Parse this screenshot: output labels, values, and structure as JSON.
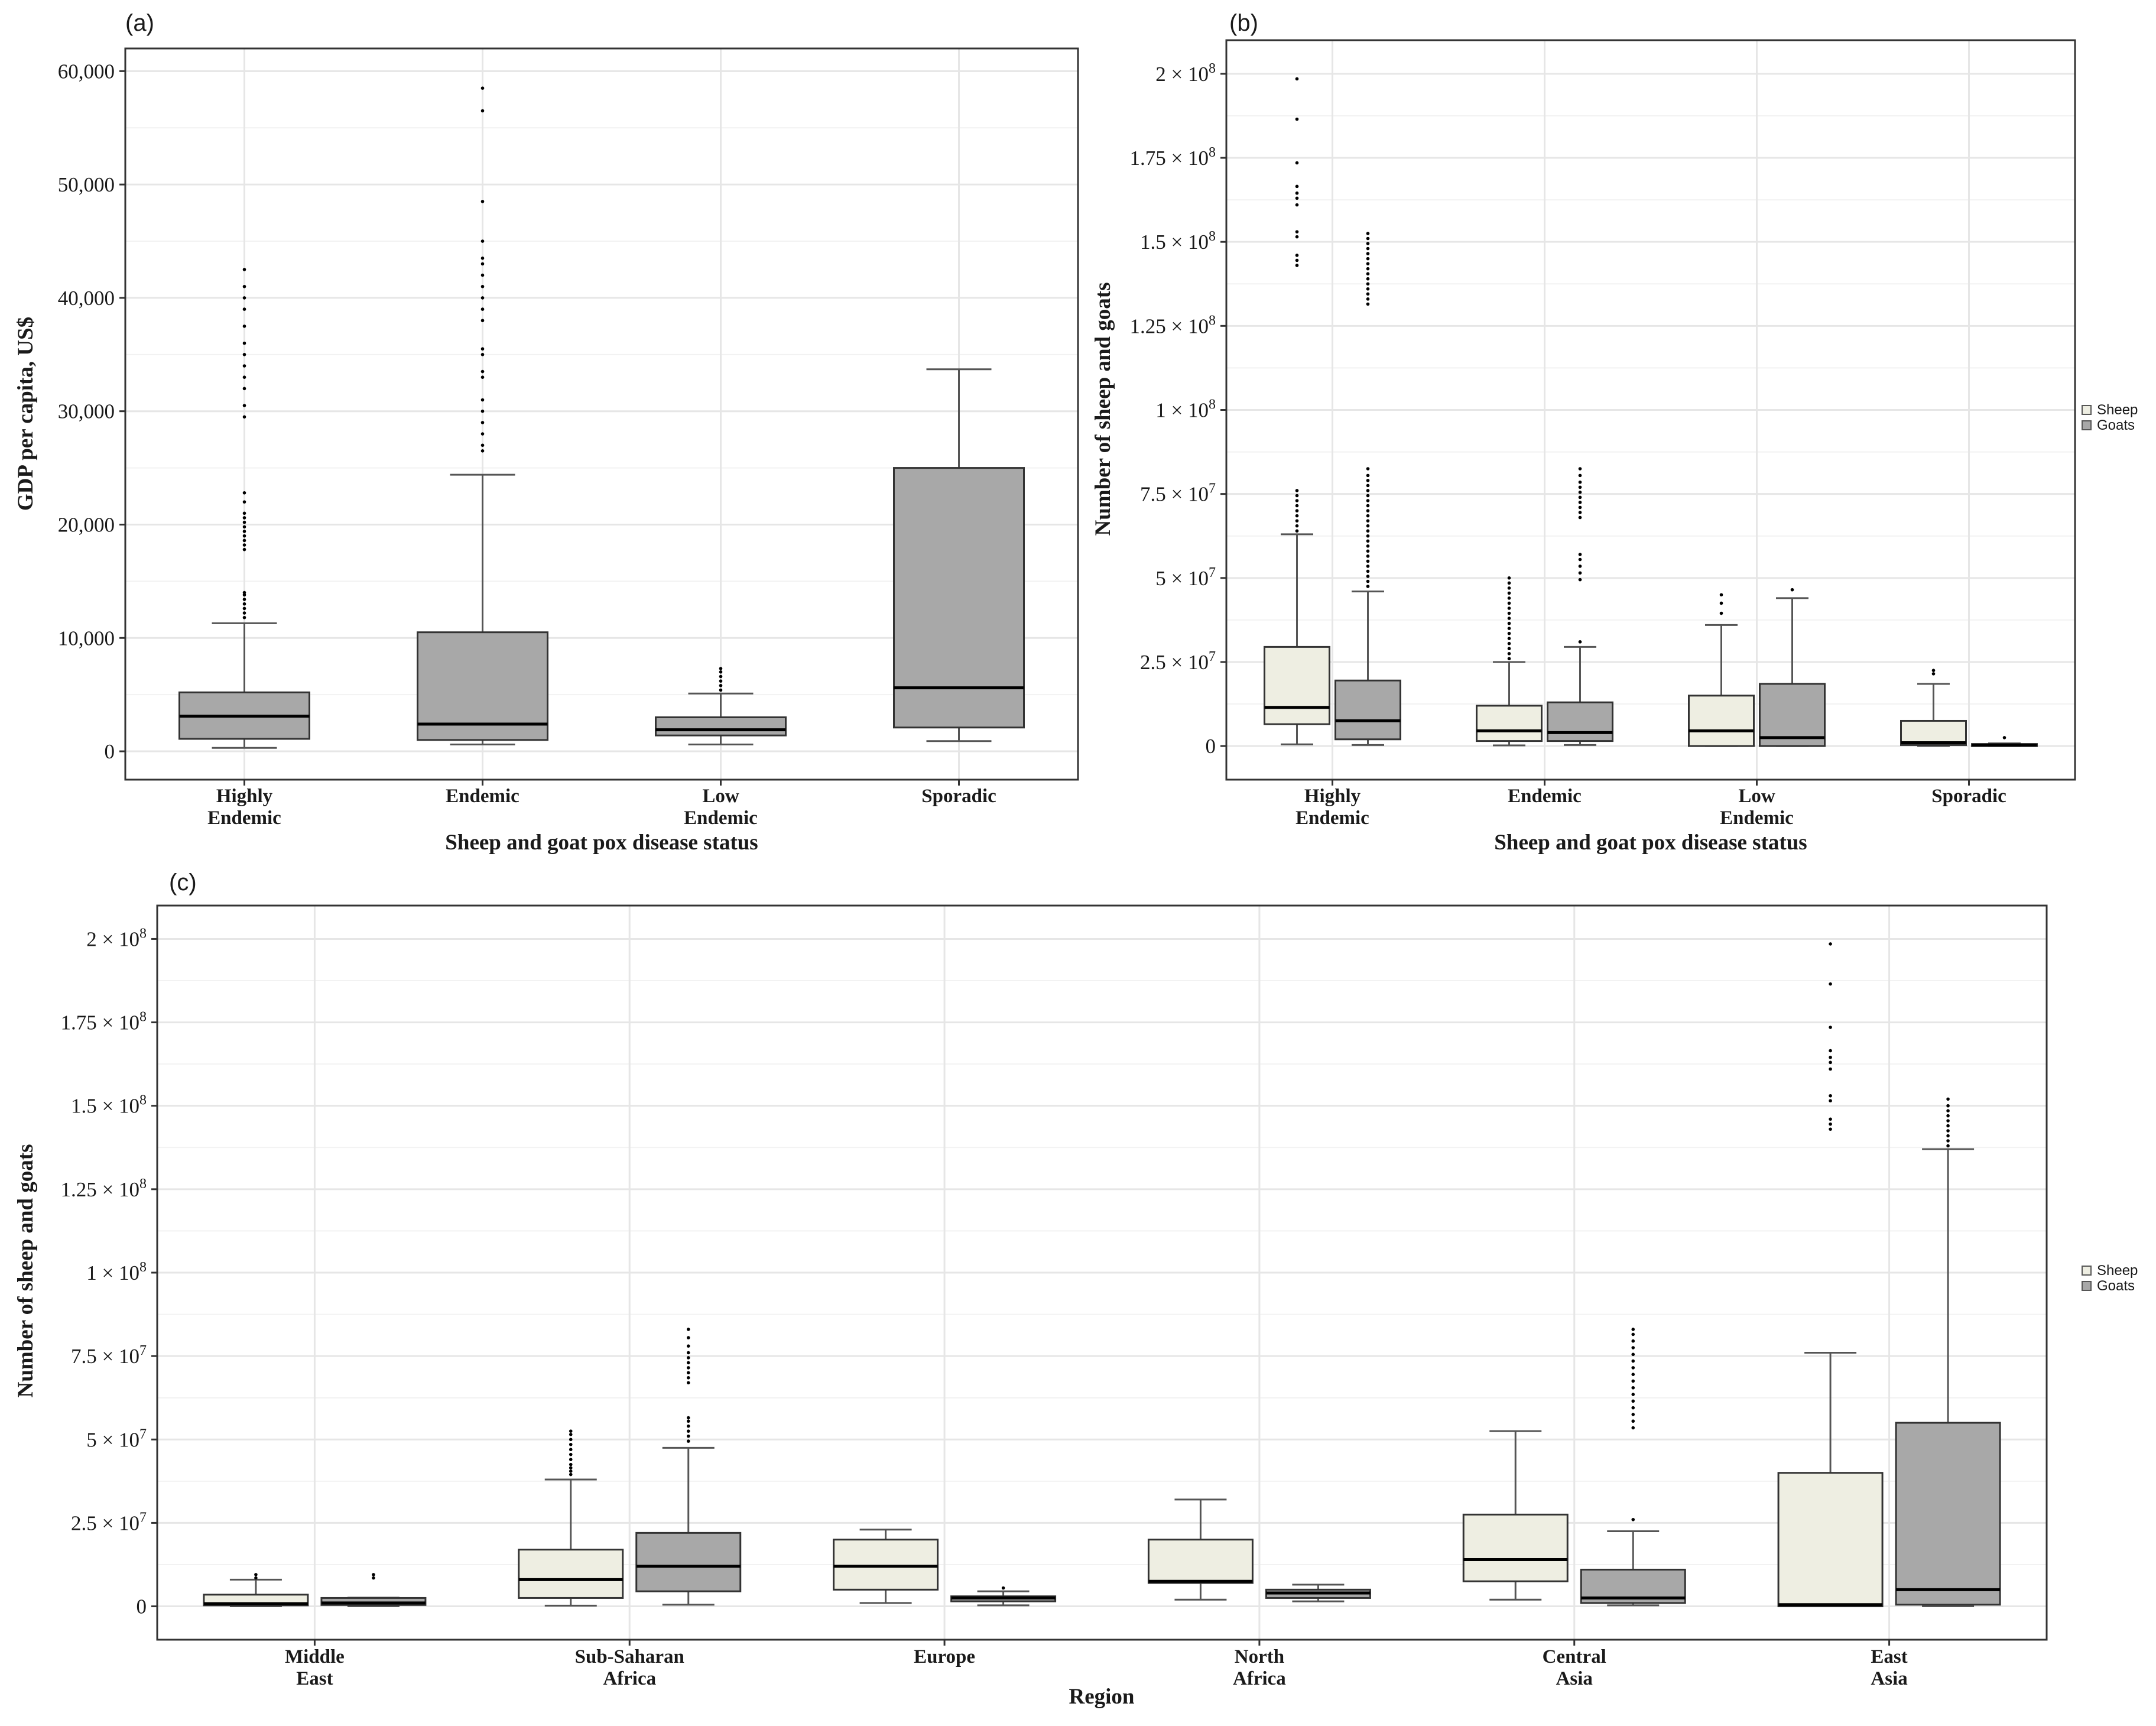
{
  "figure": {
    "panels": [
      {
        "id": "a",
        "label": "(a)"
      },
      {
        "id": "b",
        "label": "(b)"
      },
      {
        "id": "c",
        "label": "(c)"
      }
    ]
  },
  "legend": {
    "items": [
      {
        "label": "Sheep",
        "color": "#eeeee2"
      },
      {
        "label": "Goats",
        "color": "#a8a8a8"
      }
    ]
  },
  "colors": {
    "sheep": "#eeeee2",
    "goats": "#a8a8a8",
    "single": "#a8a8a8"
  },
  "chart_data": [
    {
      "panel": "a",
      "type": "boxplot",
      "title": "",
      "xlabel": "Sheep and goat pox disease status",
      "ylabel": "GDP per capita, US$",
      "ylim": [
        -2500,
        62000
      ],
      "yticks": [
        0,
        10000,
        20000,
        30000,
        40000,
        50000,
        60000
      ],
      "ytick_labels": [
        "0",
        "10,000",
        "20,000",
        "30,000",
        "40,000",
        "50,000",
        "60,000"
      ],
      "categories": [
        [
          "Highly",
          "Endemic"
        ],
        [
          "Endemic"
        ],
        [
          "Low",
          "Endemic"
        ],
        [
          "Sporadic"
        ]
      ],
      "series": [
        {
          "name": "GDP per capita",
          "color_key": "single",
          "boxes": [
            {
              "lo": 300,
              "q1": 1100,
              "med": 3100,
              "q3": 5200,
              "hi": 11300,
              "outliers": [
                11800,
                12200,
                12600,
                13000,
                13400,
                13800,
                14000,
                17800,
                18200,
                18600,
                19000,
                19400,
                19800,
                20200,
                20600,
                21000,
                22000,
                22800,
                29500,
                30500,
                32000,
                33000,
                34000,
                35000,
                36000,
                37500,
                39000,
                40000,
                41000,
                42500
              ]
            },
            {
              "lo": 600,
              "q1": 1000,
              "med": 2400,
              "q3": 10500,
              "hi": 24400,
              "outliers": [
                26500,
                27000,
                28000,
                29000,
                30000,
                31000,
                33000,
                33500,
                35000,
                35500,
                38000,
                39000,
                40000,
                41000,
                42000,
                43000,
                43500,
                45000,
                48500,
                56500,
                58500
              ]
            },
            {
              "lo": 600,
              "q1": 1400,
              "med": 1900,
              "q3": 3000,
              "hi": 5100,
              "outliers": [
                5400,
                5800,
                6200,
                6600,
                7000,
                7300
              ]
            },
            {
              "lo": 900,
              "q1": 2100,
              "med": 5600,
              "q3": 25000,
              "hi": 33700,
              "outliers": []
            }
          ]
        }
      ]
    },
    {
      "panel": "b",
      "type": "boxplot",
      "title": "",
      "xlabel": "Sheep and goat pox disease status",
      "ylabel": "Number of sheep and goats",
      "ylim": [
        -10000000,
        210000000
      ],
      "yticks": [
        0,
        25000000,
        50000000,
        75000000,
        100000000,
        125000000,
        150000000,
        175000000,
        200000000
      ],
      "ytick_labels": [
        [
          "0",
          ""
        ],
        [
          "2.5 × 10",
          "7"
        ],
        [
          "5 × 10",
          "7"
        ],
        [
          "7.5 × 10",
          "7"
        ],
        [
          "1 × 10",
          "8"
        ],
        [
          "1.25 × 10",
          "8"
        ],
        [
          "1.5 × 10",
          "8"
        ],
        [
          "1.75 × 10",
          "8"
        ],
        [
          "2 × 10",
          "8"
        ]
      ],
      "categories": [
        [
          "Highly",
          "Endemic"
        ],
        [
          "Endemic"
        ],
        [
          "Low",
          "Endemic"
        ],
        [
          "Sporadic"
        ]
      ],
      "series": [
        {
          "name": "Sheep",
          "color_key": "sheep",
          "boxes": [
            {
              "lo": 500000,
              "q1": 6500000,
              "med": 11500000,
              "q3": 29500000,
              "hi": 63000000,
              "outliers": [
                64000000,
                65500000,
                67000000,
                68500000,
                70000000,
                71500000,
                73000000,
                74500000,
                76000000,
                143000000,
                144500000,
                146000000,
                151500000,
                153000000,
                161000000,
                163000000,
                164500000,
                166500000,
                173500000,
                186500000,
                198500000
              ]
            },
            {
              "lo": 200000,
              "q1": 1500000,
              "med": 4500000,
              "q3": 12000000,
              "hi": 25000000,
              "outliers": [
                26000000,
                27500000,
                29000000,
                30500000,
                32000000,
                33500000,
                35000000,
                36500000,
                38000000,
                39500000,
                41000000,
                42500000,
                44000000,
                45500000,
                47000000,
                48500000,
                50000000
              ]
            },
            {
              "lo": 0,
              "q1": 0,
              "med": 4500000,
              "q3": 15000000,
              "hi": 36000000,
              "outliers": [
                39500000,
                42500000,
                45000000
              ]
            },
            {
              "lo": 0,
              "q1": 300000,
              "med": 1000000,
              "q3": 7500000,
              "hi": 18500000,
              "outliers": [
                21500000,
                22500000
              ]
            }
          ]
        },
        {
          "name": "Goats",
          "color_key": "goats",
          "boxes": [
            {
              "lo": 300000,
              "q1": 2000000,
              "med": 7500000,
              "q3": 19500000,
              "hi": 46000000,
              "outliers": [
                47500000,
                49000000,
                50500000,
                52000000,
                53500000,
                55000000,
                56500000,
                58000000,
                59500000,
                61000000,
                62500000,
                64000000,
                65500000,
                67000000,
                68500000,
                70000000,
                71500000,
                73000000,
                74500000,
                76000000,
                77500000,
                79000000,
                80500000,
                82500000,
                131500000,
                133000000,
                134500000,
                136000000,
                137500000,
                139000000,
                140500000,
                142000000,
                143500000,
                145000000,
                146500000,
                148000000,
                149500000,
                151000000,
                152500000
              ]
            },
            {
              "lo": 300000,
              "q1": 1500000,
              "med": 4000000,
              "q3": 13000000,
              "hi": 29500000,
              "outliers": [
                31000000,
                49500000,
                51500000,
                53500000,
                55500000,
                57000000,
                68000000,
                69500000,
                71000000,
                72500000,
                74000000,
                75500000,
                77000000,
                78500000,
                80500000,
                82500000
              ]
            },
            {
              "lo": 0,
              "q1": 0,
              "med": 2500000,
              "q3": 18500000,
              "hi": 44000000,
              "outliers": [
                46500000
              ]
            },
            {
              "lo": 0,
              "q1": 0,
              "med": 300000,
              "q3": 600000,
              "hi": 800000,
              "outliers": [
                2500000
              ]
            }
          ]
        }
      ]
    },
    {
      "panel": "c",
      "type": "boxplot",
      "title": "",
      "xlabel": "Region",
      "ylabel": "Number of sheep and goats",
      "ylim": [
        -10000000,
        210000000
      ],
      "yticks": [
        0,
        25000000,
        50000000,
        75000000,
        100000000,
        125000000,
        150000000,
        175000000,
        200000000
      ],
      "ytick_labels": [
        [
          "0",
          ""
        ],
        [
          "2.5 × 10",
          "7"
        ],
        [
          "5 × 10",
          "7"
        ],
        [
          "7.5 × 10",
          "7"
        ],
        [
          "1 × 10",
          "8"
        ],
        [
          "1.25 × 10",
          "8"
        ],
        [
          "1.5 × 10",
          "8"
        ],
        [
          "1.75 × 10",
          "8"
        ],
        [
          "2 × 10",
          "8"
        ]
      ],
      "categories": [
        [
          "Middle",
          "East"
        ],
        [
          "Sub-Saharan",
          "Africa"
        ],
        [
          "Europe"
        ],
        [
          "North",
          "Africa"
        ],
        [
          "Central",
          "Asia"
        ],
        [
          "East",
          "Asia"
        ]
      ],
      "series": [
        {
          "name": "Sheep",
          "color_key": "sheep",
          "boxes": [
            {
              "lo": 0,
              "q1": 300000,
              "med": 800000,
              "q3": 3500000,
              "hi": 8000000,
              "outliers": [
                8500000,
                9500000
              ]
            },
            {
              "lo": 200000,
              "q1": 2500000,
              "med": 8000000,
              "q3": 17000000,
              "hi": 38000000,
              "outliers": [
                39500000,
                40500000,
                41500000,
                42500000,
                44000000,
                45500000,
                47000000,
                48500000,
                50000000,
                51500000,
                52500000
              ]
            },
            {
              "lo": 1000000,
              "q1": 5000000,
              "med": 12000000,
              "q3": 20000000,
              "hi": 23000000,
              "outliers": []
            },
            {
              "lo": 2000000,
              "q1": 7000000,
              "med": 7500000,
              "q3": 20000000,
              "hi": 32000000,
              "outliers": []
            },
            {
              "lo": 2000000,
              "q1": 7500000,
              "med": 14000000,
              "q3": 27500000,
              "hi": 52500000,
              "outliers": []
            },
            {
              "lo": 0,
              "q1": 0,
              "med": 500000,
              "q3": 40000000,
              "hi": 76000000,
              "outliers": [
                143000000,
                144500000,
                146000000,
                151500000,
                153000000,
                161000000,
                163000000,
                164500000,
                166500000,
                173500000,
                186500000,
                198500000
              ]
            }
          ]
        },
        {
          "name": "Goats",
          "color_key": "goats",
          "boxes": [
            {
              "lo": 0,
              "q1": 400000,
              "med": 1000000,
              "q3": 2500000,
              "hi": 2600000,
              "outliers": [
                8500000,
                9500000
              ]
            },
            {
              "lo": 500000,
              "q1": 4500000,
              "med": 12000000,
              "q3": 22000000,
              "hi": 47500000,
              "outliers": [
                49500000,
                51000000,
                52500000,
                54000000,
                55500000,
                56500000,
                67000000,
                68500000,
                70000000,
                71500000,
                73000000,
                74500000,
                76000000,
                78000000,
                80500000,
                83000000
              ]
            },
            {
              "lo": 300000,
              "q1": 1500000,
              "med": 2500000,
              "q3": 3000000,
              "hi": 4500000,
              "outliers": [
                5500000
              ]
            },
            {
              "lo": 1500000,
              "q1": 2500000,
              "med": 4000000,
              "q3": 5000000,
              "hi": 6500000,
              "outliers": []
            },
            {
              "lo": 300000,
              "q1": 1000000,
              "med": 2500000,
              "q3": 11000000,
              "hi": 22500000,
              "outliers": [
                26000000,
                53500000,
                55500000,
                57500000,
                59500000,
                61500000,
                63500000,
                65500000,
                67500000,
                69500000,
                71500000,
                73500000,
                75500000,
                77500000,
                79500000,
                81500000,
                83000000
              ]
            },
            {
              "lo": 0,
              "q1": 500000,
              "med": 5000000,
              "q3": 55000000,
              "hi": 137000000,
              "outliers": [
                138000000,
                139500000,
                141000000,
                142500000,
                144000000,
                145500000,
                147000000,
                148500000,
                150000000,
                152000000
              ]
            }
          ]
        }
      ]
    }
  ]
}
